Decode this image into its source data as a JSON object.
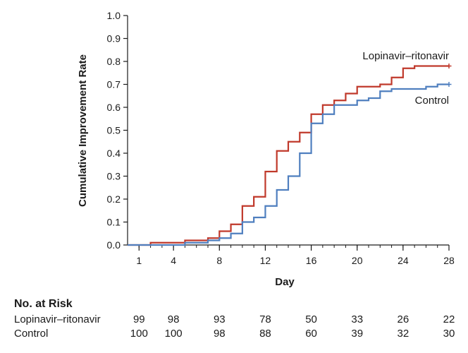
{
  "chart_data": {
    "type": "line",
    "title": "",
    "xlabel": "Day",
    "ylabel": "Cumulative Improvement Rate",
    "xlim": [
      0,
      28
    ],
    "ylim": [
      0,
      1.0
    ],
    "x_ticks": [
      1,
      4,
      8,
      12,
      16,
      20,
      24,
      28
    ],
    "y_ticks": [
      "0.0",
      "0.1",
      "0.2",
      "0.3",
      "0.4",
      "0.5",
      "0.6",
      "0.7",
      "0.8",
      "0.9",
      "1.0"
    ],
    "grid": false,
    "step": true,
    "series": [
      {
        "name": "Lopinavir–ritonavir",
        "color": "#c0392b",
        "x": [
          0,
          2,
          5,
          7,
          8,
          9,
          10,
          11,
          12,
          13,
          14,
          15,
          16,
          17,
          18,
          19,
          20,
          22,
          23,
          24,
          25,
          28
        ],
        "y": [
          0,
          0.01,
          0.02,
          0.03,
          0.06,
          0.09,
          0.17,
          0.21,
          0.32,
          0.41,
          0.45,
          0.49,
          0.57,
          0.61,
          0.63,
          0.66,
          0.69,
          0.7,
          0.73,
          0.77,
          0.78,
          0.78
        ]
      },
      {
        "name": "Control",
        "color": "#4f7fbf",
        "x": [
          0,
          5,
          7,
          8,
          9,
          10,
          11,
          12,
          13,
          14,
          15,
          16,
          17,
          18,
          20,
          21,
          22,
          23,
          26,
          27,
          28
        ],
        "y": [
          0,
          0.01,
          0.02,
          0.03,
          0.05,
          0.1,
          0.12,
          0.17,
          0.24,
          0.3,
          0.4,
          0.53,
          0.57,
          0.61,
          0.63,
          0.64,
          0.67,
          0.68,
          0.69,
          0.7,
          0.7
        ]
      }
    ]
  },
  "risk_table": {
    "title": "No. at Risk",
    "rows": [
      {
        "name": "Lopinavir–ritonavir",
        "values": [
          "99",
          "98",
          "93",
          "78",
          "50",
          "33",
          "26",
          "22"
        ]
      },
      {
        "name": "Control",
        "values": [
          "100",
          "100",
          "98",
          "88",
          "60",
          "39",
          "32",
          "30"
        ]
      }
    ]
  }
}
